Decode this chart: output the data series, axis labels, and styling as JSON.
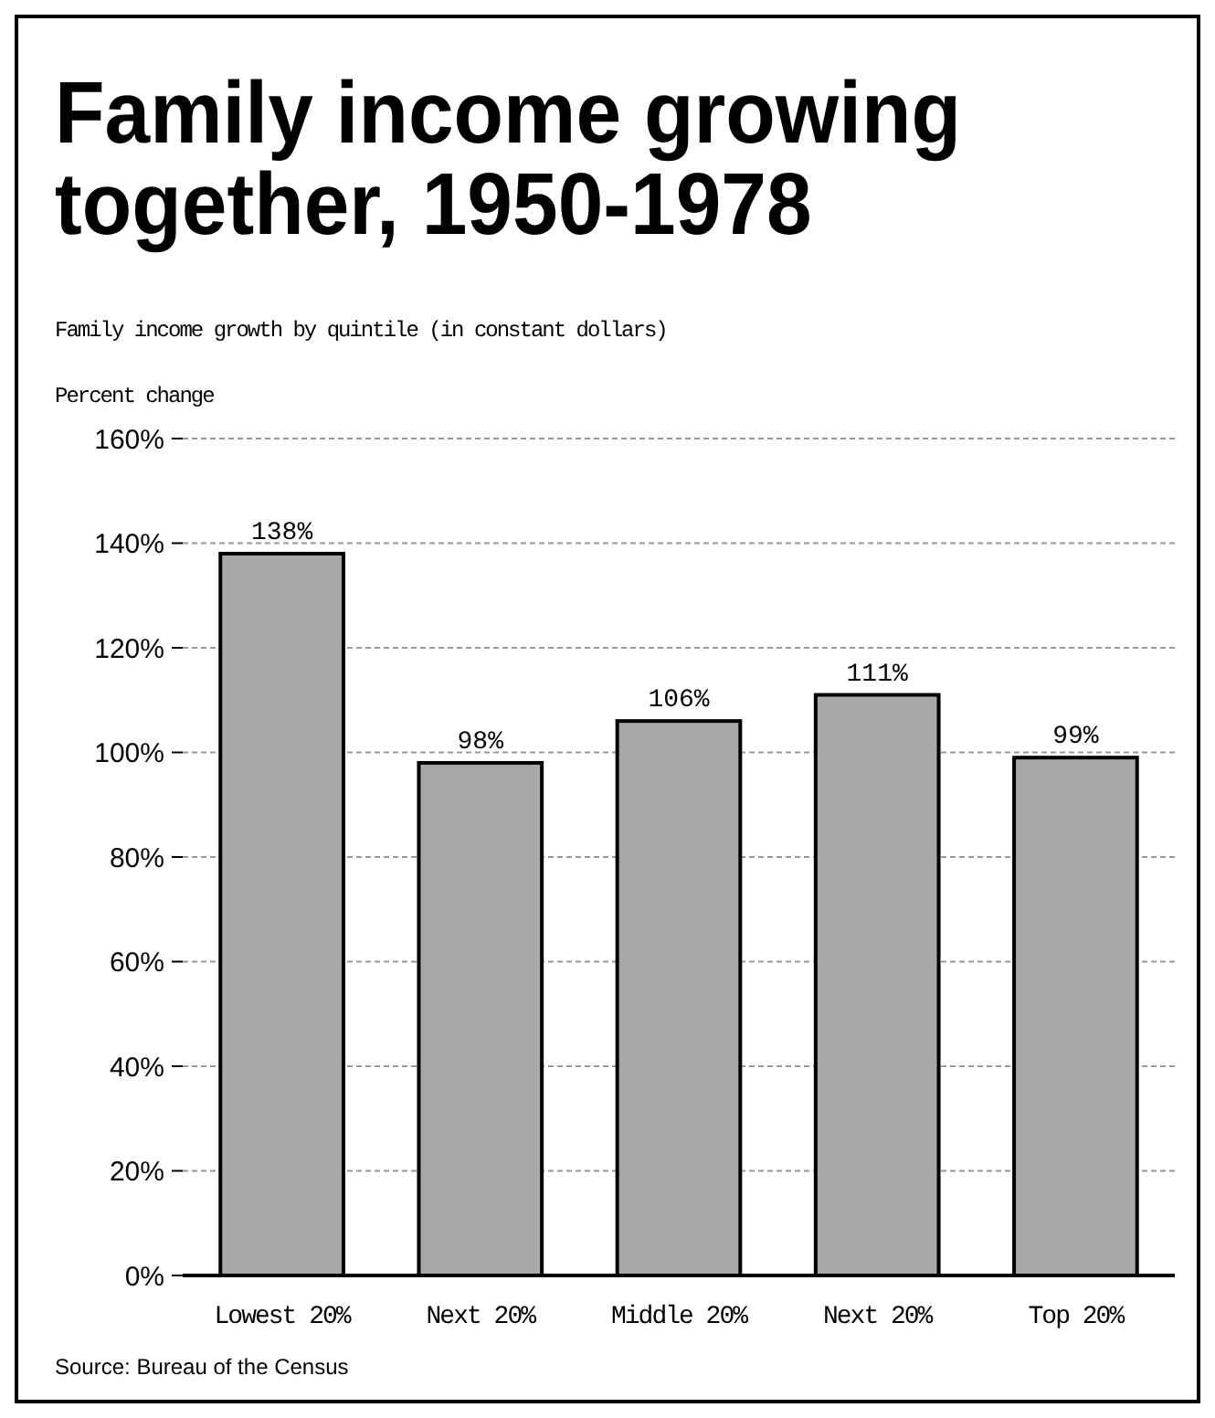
{
  "chart_data": {
    "type": "bar",
    "title": "Family income growing together, 1950-1978",
    "subtitle": "Family income growth by quintile (in constant dollars)",
    "ylabel": "Percent change",
    "categories": [
      "Lowest 20%",
      "Next 20%",
      "Middle 20%",
      "Next 20%",
      "Top 20%"
    ],
    "values": [
      138,
      98,
      106,
      111,
      99
    ],
    "value_labels": [
      "138%",
      "98%",
      "106%",
      "111%",
      "99%"
    ],
    "color": "#a8a8a8",
    "ylim": [
      0,
      160
    ],
    "yticks": [
      {
        "value": 0,
        "label": "0%"
      },
      {
        "value": 20,
        "label": "20%"
      },
      {
        "value": 40,
        "label": "40%"
      },
      {
        "value": 60,
        "label": "60%"
      },
      {
        "value": 80,
        "label": "80%"
      },
      {
        "value": 100,
        "label": "100%"
      },
      {
        "value": 120,
        "label": "120%"
      },
      {
        "value": 140,
        "label": "140%"
      },
      {
        "value": 160,
        "label": "160%"
      }
    ],
    "grid": "y",
    "annotations": [
      "Source: Bureau of the Census"
    ]
  }
}
